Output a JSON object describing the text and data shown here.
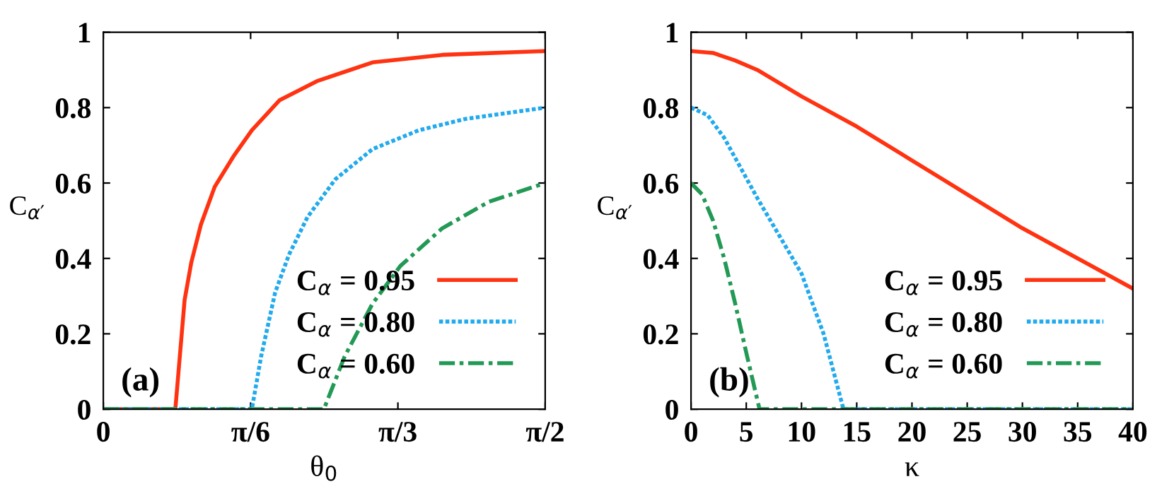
{
  "chart_data": [
    {
      "type": "line",
      "xlabel": "θ$_{0}$",
      "ylabel": "C$_{α′}$",
      "annotations": [
        "(a)"
      ],
      "legend": "bottom right",
      "grid": false,
      "xlim": [
        0,
        1.5708
      ],
      "xticks": [
        0,
        {
          "value": 0.5236,
          "label": "π/6"
        },
        {
          "value": 1.0472,
          "label": "π/3"
        },
        {
          "value": 1.5708,
          "label": "π/2"
        }
      ],
      "ylim": [
        0,
        1
      ],
      "yticks": [
        0,
        0.2,
        0.4,
        0.6,
        0.8,
        1
      ],
      "series": [
        {
          "name": "C$_{α}$ = 0.95",
          "color": "#ff3311",
          "line_style": "solid",
          "x": [
            0,
            0.256,
            0.289,
            0.313,
            0.347,
            0.396,
            0.462,
            0.528,
            0.627,
            0.759,
            0.957,
            1.205,
            1.5708
          ],
          "values": [
            0,
            0,
            0.29,
            0.39,
            0.49,
            0.59,
            0.67,
            0.74,
            0.82,
            0.87,
            0.92,
            0.94,
            0.95
          ]
        },
        {
          "name": "C$_{α}$ = 0.80",
          "color": "#22aaee",
          "line_style": "dotted",
          "x": [
            0,
            0.528,
            0.561,
            0.611,
            0.66,
            0.726,
            0.825,
            0.957,
            1.122,
            1.287,
            1.5708
          ],
          "values": [
            0,
            0,
            0.14,
            0.31,
            0.41,
            0.51,
            0.61,
            0.69,
            0.74,
            0.77,
            0.8
          ]
        },
        {
          "name": "C$_{α}$ = 0.60",
          "color": "#229955",
          "line_style": "dashed",
          "x": [
            0,
            0.784,
            0.858,
            0.957,
            1.056,
            1.205,
            1.37,
            1.5708
          ],
          "values": [
            0,
            0,
            0.14,
            0.28,
            0.38,
            0.48,
            0.55,
            0.6
          ]
        }
      ]
    },
    {
      "type": "line",
      "xlabel": "κ",
      "ylabel": "C$_{α′}$",
      "annotations": [
        "(b)"
      ],
      "legend": "bottom right",
      "grid": false,
      "xlim": [
        0,
        40
      ],
      "xticks": [
        0,
        5,
        10,
        15,
        20,
        25,
        30,
        35,
        40
      ],
      "ylim": [
        0,
        1
      ],
      "yticks": [
        0,
        0.2,
        0.4,
        0.6,
        0.8,
        1
      ],
      "series": [
        {
          "name": "C$_{α}$ = 0.95",
          "color": "#ff3311",
          "line_style": "solid",
          "x": [
            0,
            2,
            4,
            6,
            10,
            15,
            20,
            25,
            30,
            35,
            40
          ],
          "values": [
            0.95,
            0.945,
            0.925,
            0.9,
            0.83,
            0.75,
            0.66,
            0.57,
            0.48,
            0.4,
            0.32
          ]
        },
        {
          "name": "C$_{α}$ = 0.80",
          "color": "#22aaee",
          "line_style": "dotted",
          "x": [
            0,
            1.5,
            3,
            4.5,
            6,
            8,
            10,
            12,
            13.8,
            40
          ],
          "values": [
            0.8,
            0.78,
            0.72,
            0.64,
            0.56,
            0.46,
            0.36,
            0.2,
            0,
            0
          ]
        },
        {
          "name": "C$_{α}$ = 0.60",
          "color": "#229955",
          "line_style": "dashed",
          "x": [
            0,
            1,
            2,
            3,
            4,
            5,
            6.2,
            40
          ],
          "values": [
            0.6,
            0.57,
            0.5,
            0.4,
            0.28,
            0.15,
            0,
            0
          ]
        }
      ]
    }
  ]
}
